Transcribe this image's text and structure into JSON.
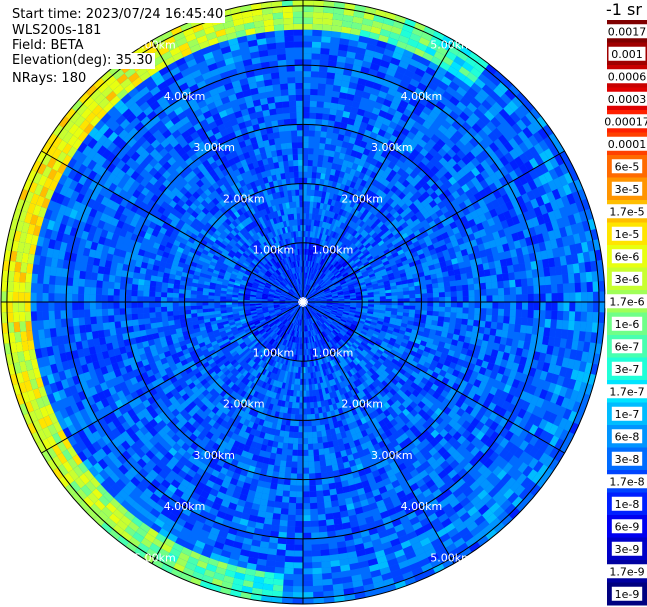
{
  "header": {
    "start_time": "Start time: 2023/07/24 16:45:40",
    "instrument": "WLS200s-181",
    "field": "Field: BETA",
    "elevation": "Elevation(deg): 35.30",
    "nrays": "NRays: 180"
  },
  "colorbar": {
    "title": "-1 sr",
    "labels": [
      "0.0017",
      "0.001",
      "0.0006",
      "0.0003",
      "0.00017",
      "0.0001",
      "6e-5",
      "3e-5",
      "1.7e-5",
      "1e-5",
      "6e-6",
      "3e-6",
      "1.7e-6",
      "1e-6",
      "6e-7",
      "3e-7",
      "1.7e-7",
      "1e-7",
      "6e-8",
      "3e-8",
      "1.7e-8",
      "1e-8",
      "6e-9",
      "3e-9",
      "1.7e-9",
      "1e-9"
    ],
    "colors": [
      "#800000",
      "#a00000",
      "#c80000",
      "#e00000",
      "#ff2000",
      "#ff4000",
      "#ff6a00",
      "#ff9400",
      "#ffbe00",
      "#ffe400",
      "#e8ff10",
      "#c8ff30",
      "#a0ff58",
      "#70ff88",
      "#48ffb0",
      "#20ffd8",
      "#00e4ff",
      "#00bcff",
      "#0094ff",
      "#006cff",
      "#0044ff",
      "#0020ff",
      "#0000f0",
      "#0000c8",
      "#0000a0",
      "#000080"
    ]
  },
  "chart_data": {
    "type": "heatmap",
    "projection": "polar (PPI scan)",
    "field": "BETA",
    "units": "-1 sr",
    "range_ring_labels": [
      "1.00km",
      "2.00km",
      "3.00km",
      "4.00km",
      "5.00km"
    ],
    "range_rings_km": [
      1,
      2,
      3,
      4,
      5
    ],
    "max_range_km": 5.1,
    "radial_lines_deg": [
      0,
      30,
      60,
      90,
      120,
      150,
      180,
      210,
      240,
      270,
      300,
      330
    ],
    "nrays": 180,
    "elevation_deg": 35.3,
    "color_scale": "log",
    "value_range": [
      1e-09,
      0.0017
    ],
    "description_values": {
      "near_center_0_to_1km": 1.7e-08,
      "mid_range_1_to_4km": 3e-08,
      "aerosol_layer_ring_km": [
        4.6,
        5.1
      ],
      "aerosol_layer_peak": 6e-06
    }
  }
}
